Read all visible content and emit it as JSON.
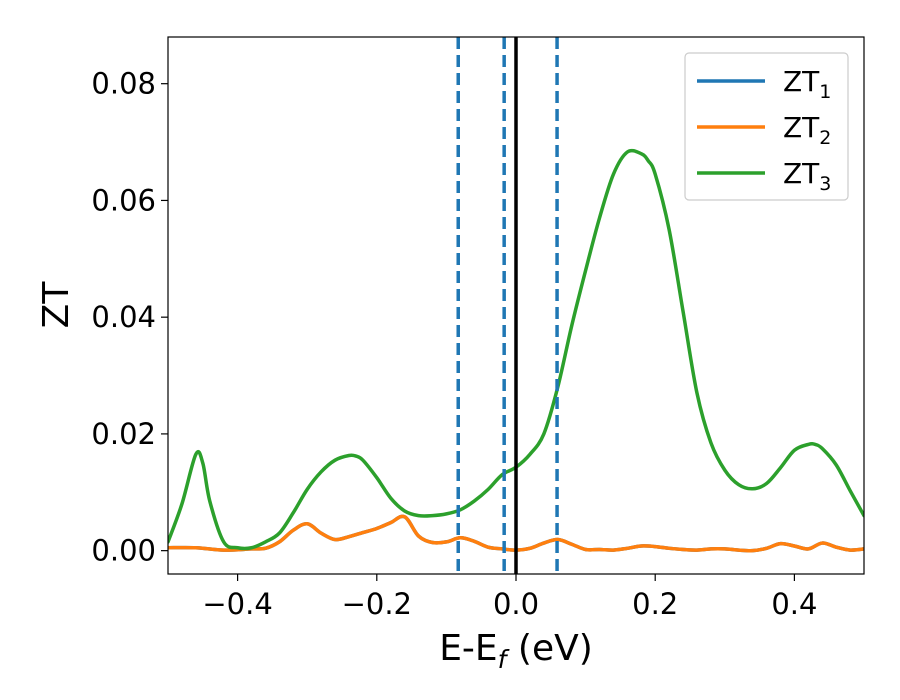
{
  "chart_data": {
    "type": "line",
    "title": "",
    "xlabel": {
      "main": "E-E",
      "sub": "f",
      "unit": " (eV)"
    },
    "ylabel": "ZT",
    "xlim": [
      -0.5,
      0.5
    ],
    "ylim": [
      -0.004,
      0.088
    ],
    "x_ticks": [
      {
        "value": -0.4,
        "label": "−0.4"
      },
      {
        "value": -0.2,
        "label": "−0.2"
      },
      {
        "value": 0.0,
        "label": "0.0"
      },
      {
        "value": 0.2,
        "label": "0.2"
      },
      {
        "value": 0.4,
        "label": "0.4"
      }
    ],
    "y_ticks": [
      {
        "value": 0.0,
        "label": "0.00"
      },
      {
        "value": 0.02,
        "label": "0.02"
      },
      {
        "value": 0.04,
        "label": "0.04"
      },
      {
        "value": 0.06,
        "label": "0.06"
      },
      {
        "value": 0.08,
        "label": "0.08"
      }
    ],
    "grid": false,
    "legend_position": "top-right",
    "vertical_lines": [
      {
        "x": -0.083,
        "style": "dashed",
        "color": "#1f77b4"
      },
      {
        "x": -0.017,
        "style": "dashed",
        "color": "#1f77b4"
      },
      {
        "x": 0.0,
        "style": "solid",
        "color": "#000000"
      },
      {
        "x": 0.059,
        "style": "dashed",
        "color": "#1f77b4"
      }
    ],
    "series": [
      {
        "name": "ZT",
        "name_sub": "1",
        "color": "#1f77b4",
        "x": [
          -0.5,
          -0.46,
          -0.42,
          -0.38,
          -0.36,
          -0.34,
          -0.32,
          -0.3,
          -0.28,
          -0.26,
          -0.24,
          -0.22,
          -0.2,
          -0.18,
          -0.16,
          -0.14,
          -0.12,
          -0.1,
          -0.08,
          -0.06,
          -0.04,
          -0.02,
          0.0,
          0.02,
          0.04,
          0.06,
          0.08,
          0.1,
          0.12,
          0.14,
          0.16,
          0.18,
          0.2,
          0.22,
          0.24,
          0.26,
          0.28,
          0.3,
          0.32,
          0.34,
          0.36,
          0.38,
          0.4,
          0.42,
          0.44,
          0.46,
          0.48,
          0.5
        ],
        "y": [
          0.0005,
          0.0005,
          0.0001,
          0.0003,
          0.0004,
          0.0015,
          0.0035,
          0.0046,
          0.003,
          0.0019,
          0.0024,
          0.0031,
          0.0038,
          0.0048,
          0.0058,
          0.0025,
          0.0014,
          0.0015,
          0.0022,
          0.0016,
          0.0006,
          0.0003,
          0.0001,
          0.0004,
          0.0013,
          0.0019,
          0.0011,
          0.0002,
          0.0002,
          0.0001,
          0.0004,
          0.0008,
          0.0007,
          0.0004,
          0.0002,
          0.0001,
          0.0003,
          0.0003,
          0.0001,
          0.0,
          0.0004,
          0.0012,
          0.0008,
          0.0003,
          0.0013,
          0.0006,
          0.0001,
          0.0003
        ]
      },
      {
        "name": "ZT",
        "name_sub": "2",
        "color": "#ff7f0e",
        "x": [
          -0.5,
          -0.46,
          -0.42,
          -0.38,
          -0.36,
          -0.34,
          -0.32,
          -0.3,
          -0.28,
          -0.26,
          -0.24,
          -0.22,
          -0.2,
          -0.18,
          -0.16,
          -0.14,
          -0.12,
          -0.1,
          -0.08,
          -0.06,
          -0.04,
          -0.02,
          0.0,
          0.02,
          0.04,
          0.06,
          0.08,
          0.1,
          0.12,
          0.14,
          0.16,
          0.18,
          0.2,
          0.22,
          0.24,
          0.26,
          0.28,
          0.3,
          0.32,
          0.34,
          0.36,
          0.38,
          0.4,
          0.42,
          0.44,
          0.46,
          0.48,
          0.5
        ],
        "y": [
          0.0005,
          0.0005,
          0.0001,
          0.0003,
          0.0004,
          0.0015,
          0.0035,
          0.0046,
          0.003,
          0.0019,
          0.0024,
          0.0031,
          0.0038,
          0.0048,
          0.0058,
          0.0025,
          0.0014,
          0.0015,
          0.0022,
          0.0016,
          0.0006,
          0.0003,
          0.0001,
          0.0004,
          0.0013,
          0.0019,
          0.0011,
          0.0002,
          0.0002,
          0.0001,
          0.0004,
          0.0008,
          0.0007,
          0.0004,
          0.0002,
          0.0001,
          0.0003,
          0.0003,
          0.0001,
          0.0,
          0.0004,
          0.0012,
          0.0008,
          0.0003,
          0.0013,
          0.0006,
          0.0001,
          0.0003
        ]
      },
      {
        "name": "ZT",
        "name_sub": "3",
        "color": "#2ca02c",
        "x": [
          -0.5,
          -0.48,
          -0.46,
          -0.45,
          -0.44,
          -0.42,
          -0.4,
          -0.38,
          -0.36,
          -0.34,
          -0.32,
          -0.3,
          -0.28,
          -0.26,
          -0.24,
          -0.23,
          -0.22,
          -0.2,
          -0.18,
          -0.16,
          -0.14,
          -0.12,
          -0.1,
          -0.08,
          -0.06,
          -0.04,
          -0.02,
          0.0,
          0.02,
          0.04,
          0.06,
          0.08,
          0.1,
          0.12,
          0.14,
          0.16,
          0.18,
          0.19,
          0.2,
          0.22,
          0.24,
          0.26,
          0.28,
          0.3,
          0.32,
          0.34,
          0.36,
          0.38,
          0.4,
          0.42,
          0.43,
          0.44,
          0.46,
          0.48,
          0.5
        ],
        "y": [
          0.0015,
          0.008,
          0.0165,
          0.015,
          0.0085,
          0.0015,
          0.0005,
          0.0005,
          0.0015,
          0.003,
          0.0065,
          0.0105,
          0.0135,
          0.0155,
          0.0163,
          0.0162,
          0.0155,
          0.0125,
          0.009,
          0.0068,
          0.006,
          0.006,
          0.0063,
          0.007,
          0.0085,
          0.0105,
          0.013,
          0.0143,
          0.0165,
          0.02,
          0.028,
          0.0385,
          0.048,
          0.057,
          0.0645,
          0.0683,
          0.068,
          0.0668,
          0.0645,
          0.055,
          0.041,
          0.027,
          0.0185,
          0.0138,
          0.0113,
          0.0106,
          0.0115,
          0.0142,
          0.0172,
          0.0182,
          0.0182,
          0.0175,
          0.0147,
          0.0103,
          0.006
        ]
      }
    ]
  }
}
